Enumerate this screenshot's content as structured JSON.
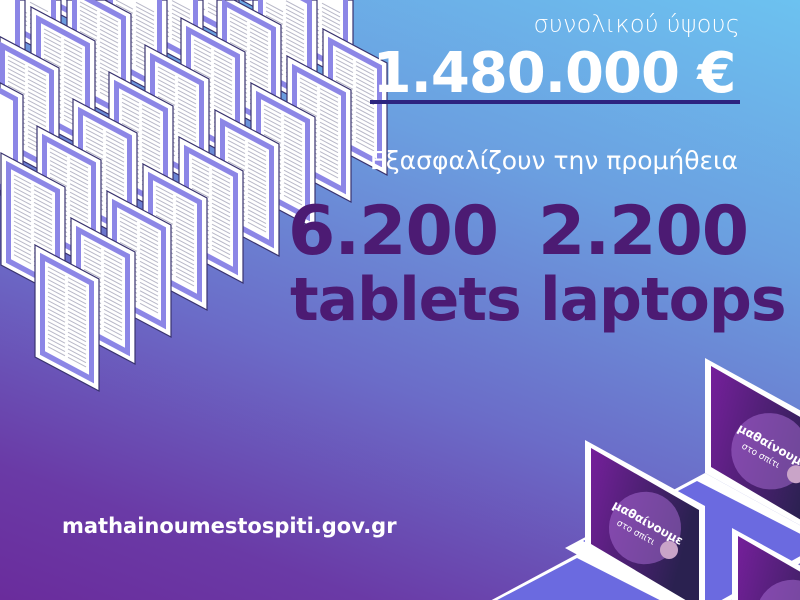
{
  "header": {
    "subtitle": "συνολικού ύψους",
    "amount": "1.480.000 €",
    "intro": "Εξασφαλίζουν την προμήθεια"
  },
  "stats": [
    {
      "number": "6.200",
      "label": "tablets"
    },
    {
      "number": "2.200",
      "label": "laptops"
    }
  ],
  "footer": {
    "url": "mathainoumestospiti.gov.gr"
  },
  "laptop_screen_logo": {
    "line1": "μαθαίνουμε",
    "line2": "στο σπίτι"
  },
  "colors": {
    "stat_text": "#4c1b73",
    "underline": "#2d2480",
    "tablet_frame": "#8c86e6",
    "laptop_screen": "#7a1fa0"
  }
}
